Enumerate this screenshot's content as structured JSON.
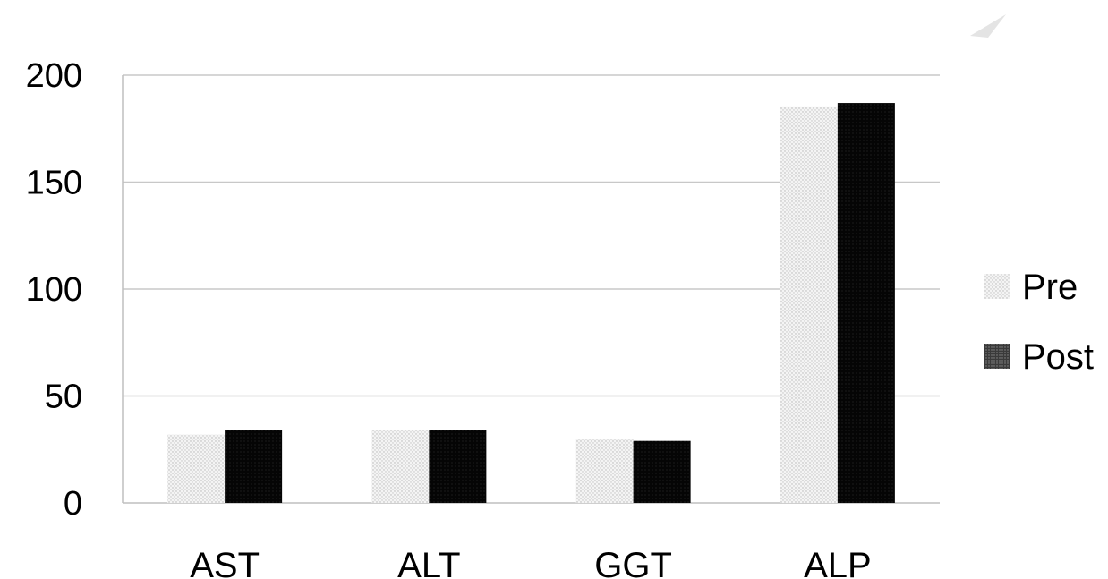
{
  "chart_data": {
    "type": "bar",
    "title": "",
    "xlabel": "",
    "ylabel": "",
    "categories": [
      "AST",
      "ALT",
      "GGT",
      "ALP"
    ],
    "series": [
      {
        "name": "Pre",
        "values": [
          32,
          34,
          30,
          185
        ]
      },
      {
        "name": "Post",
        "values": [
          34,
          34,
          29,
          187
        ]
      }
    ],
    "ylim": [
      0,
      200
    ],
    "yticks": [
      "0",
      "50",
      "100",
      "150",
      "200"
    ],
    "grid": true,
    "legend_position": "right",
    "colors": {
      "Pre": "#f2f2f2",
      "Post": "#0a0a0a",
      "grid": "#c8c8c8",
      "axis": "#bfbfbf"
    }
  }
}
